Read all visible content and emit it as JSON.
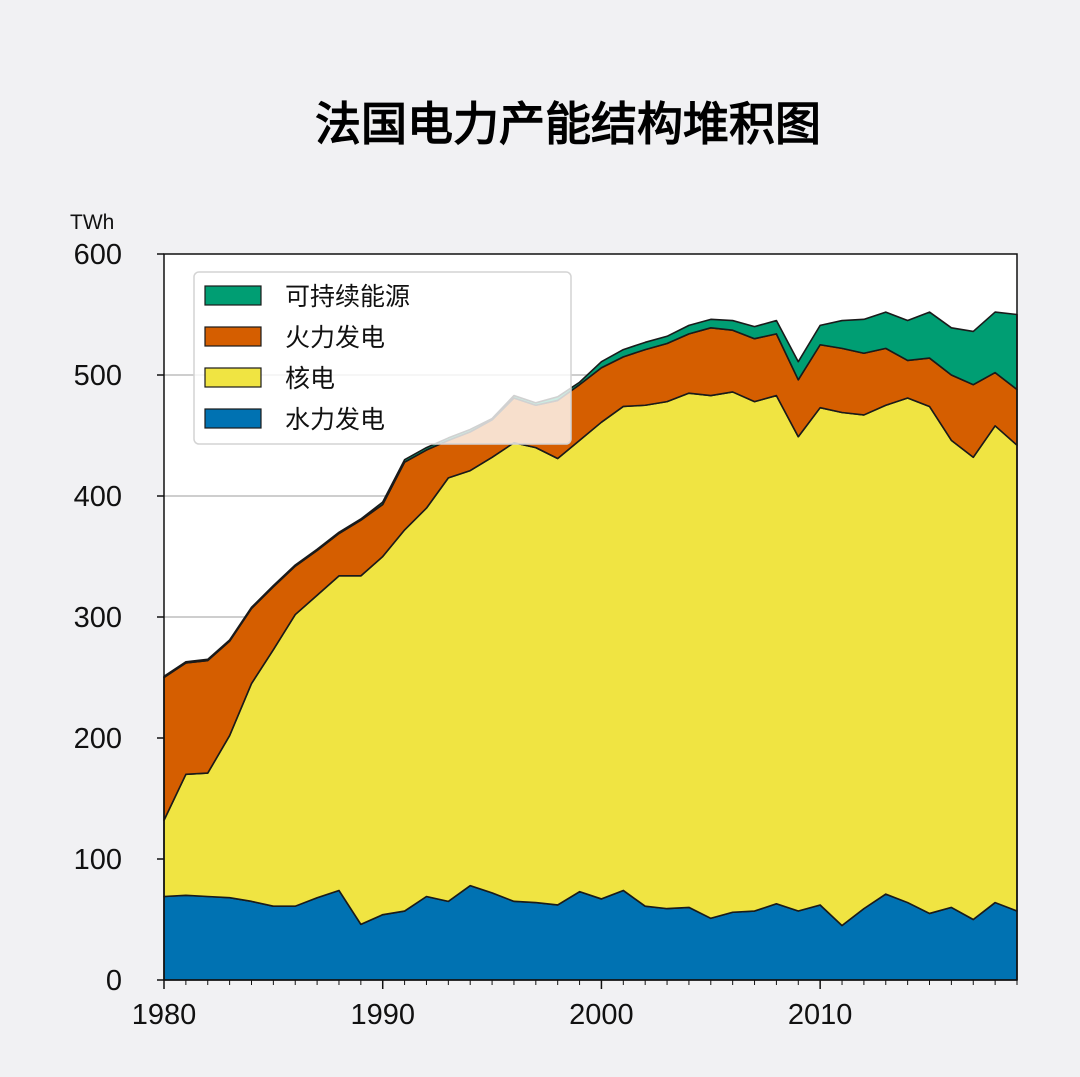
{
  "chart_data": {
    "type": "area",
    "stacked": true,
    "title": "法国电力产能结构堆积图",
    "ylabel": "TWh",
    "xlabel": "",
    "xlim": [
      1980,
      2019
    ],
    "ylim": [
      0,
      600
    ],
    "x_ticks": [
      1980,
      1990,
      2000,
      2010
    ],
    "y_ticks": [
      0,
      100,
      200,
      300,
      400,
      500,
      600
    ],
    "grid": "horizontal",
    "legend_position": "top-left",
    "x": [
      1980,
      1981,
      1982,
      1983,
      1984,
      1985,
      1986,
      1987,
      1988,
      1989,
      1990,
      1991,
      1992,
      1993,
      1994,
      1995,
      1996,
      1997,
      1998,
      1999,
      2000,
      2001,
      2002,
      2003,
      2004,
      2005,
      2006,
      2007,
      2008,
      2009,
      2010,
      2011,
      2012,
      2013,
      2014,
      2015,
      2016,
      2017,
      2018,
      2019
    ],
    "series": [
      {
        "name": "水力发电",
        "color": "#0072b2",
        "values": [
          69,
          70,
          69,
          68,
          65,
          61,
          61,
          68,
          74,
          46,
          54,
          57,
          69,
          65,
          78,
          72,
          65,
          64,
          62,
          73,
          67,
          74,
          61,
          59,
          60,
          51,
          56,
          57,
          63,
          57,
          62,
          45,
          59,
          71,
          64,
          55,
          60,
          50,
          64,
          57
        ]
      },
      {
        "name": "核电",
        "color": "#f0e442",
        "values": [
          63,
          100,
          102,
          134,
          180,
          212,
          241,
          250,
          260,
          288,
          296,
          315,
          321,
          350,
          343,
          360,
          379,
          376,
          369,
          373,
          394,
          400,
          414,
          419,
          425,
          432,
          430,
          421,
          420,
          392,
          411,
          424,
          408,
          404,
          417,
          419,
          386,
          382,
          394,
          385
        ]
      },
      {
        "name": "火力发电",
        "color": "#d55e00",
        "values": [
          118,
          92,
          93,
          78,
          62,
          52,
          40,
          37,
          35,
          46,
          43,
          56,
          48,
          31,
          32,
          31,
          37,
          35,
          48,
          46,
          45,
          41,
          46,
          48,
          49,
          56,
          51,
          52,
          51,
          47,
          52,
          53,
          51,
          47,
          31,
          40,
          54,
          60,
          44,
          46
        ]
      },
      {
        "name": "可持续能源",
        "color": "#009e73",
        "values": [
          1,
          1,
          1,
          1,
          1,
          1,
          1,
          1,
          1,
          1,
          2,
          2,
          2,
          2,
          2,
          1,
          2,
          2,
          3,
          2,
          5,
          6,
          6,
          6,
          7,
          7,
          8,
          10,
          11,
          15,
          16,
          23,
          28,
          30,
          33,
          38,
          39,
          44,
          50,
          62
        ]
      }
    ],
    "legend_order": [
      "可持续能源",
      "火力发电",
      "核电",
      "水力发电"
    ]
  }
}
